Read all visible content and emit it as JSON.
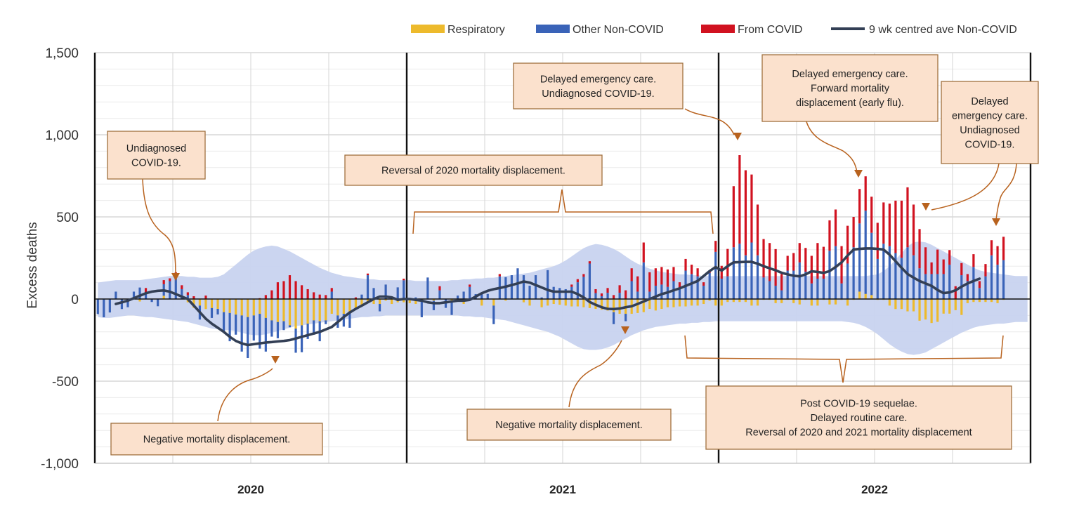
{
  "chart_data": {
    "type": "bar",
    "stacked": true,
    "ylabel": "Excess deaths",
    "ylim": [
      -1000,
      1500
    ],
    "yticks": [
      "1,500",
      "1,000",
      "500",
      "0",
      "-500",
      "-1,000"
    ],
    "ytick_values": [
      1500,
      1000,
      500,
      0,
      -500,
      -1000
    ],
    "grid": true,
    "legend_position": "top-right",
    "legend": [
      {
        "key": "respiratory",
        "label": "Respiratory",
        "kind": "bar",
        "color": "#EDBA2C"
      },
      {
        "key": "other",
        "label": "Other Non-COVID",
        "kind": "bar",
        "color": "#3A63B8"
      },
      {
        "key": "covid",
        "label": "From COVID",
        "kind": "bar",
        "color": "#D11220"
      },
      {
        "key": "ave",
        "label": "9 wk centred ave Non-COVID",
        "kind": "line",
        "color": "#333F55"
      }
    ],
    "band_color": "#C8D3EF",
    "x_unit": "week of year",
    "years": [
      {
        "label": "2020",
        "respiratory": [
          0,
          0,
          0,
          0,
          0,
          0,
          0,
          -15,
          0,
          0,
          0,
          20,
          0,
          0,
          0,
          -20,
          -54,
          -40,
          -61,
          -55,
          -60,
          -80,
          -85,
          -95,
          -100,
          -110,
          -100,
          -90,
          -115,
          -130,
          -140,
          -135,
          -160,
          -180,
          -160,
          -150,
          -130,
          -135,
          -130,
          -90,
          -100,
          -90,
          -85,
          -60,
          -40,
          -25,
          -30,
          -30,
          -10,
          -30,
          -20,
          -20
        ],
        "other": [
          -92,
          -111,
          -82,
          45,
          -61,
          -50,
          45,
          70,
          40,
          -18,
          -44,
          70,
          109,
          138,
          60,
          24,
          0,
          -85,
          0,
          -60,
          -34,
          -116,
          -172,
          -122,
          -220,
          -249,
          -153,
          -212,
          -205,
          -99,
          -99,
          -54,
          -12,
          -147,
          -164,
          -93,
          -87,
          -122,
          -23,
          45,
          -75,
          -78,
          -90,
          0,
          27,
          145,
          67,
          -45,
          88,
          0,
          71,
          114
        ],
        "covid": [
          0,
          0,
          0,
          0,
          0,
          0,
          0,
          0,
          27,
          0,
          0,
          25,
          17,
          25,
          24,
          17,
          17,
          0,
          21,
          0,
          0,
          0,
          0,
          0,
          0,
          0,
          0,
          5,
          24,
          53,
          102,
          109,
          145,
          109,
          84,
          60,
          41,
          27,
          24,
          22,
          0,
          0,
          0,
          10,
          0,
          10,
          0,
          0,
          0,
          0,
          0,
          10
        ],
        "ave": [
          null,
          null,
          null,
          -30,
          -20,
          -10,
          5,
          20,
          35,
          45,
          50,
          52,
          45,
          30,
          15,
          0,
          -40,
          -80,
          -120,
          -150,
          -175,
          -200,
          -230,
          -255,
          -270,
          -280,
          -275,
          -270,
          -265,
          -262,
          -258,
          -255,
          -250,
          -240,
          -230,
          -220,
          -210,
          -200,
          -185,
          -170,
          -140,
          -110,
          -82,
          -60,
          -40,
          -20,
          0,
          15,
          15,
          10,
          -5,
          0
        ],
        "band_upper": [
          100,
          105,
          110,
          115,
          115,
          115,
          115,
          115,
          120,
          125,
          130,
          135,
          140,
          140,
          140,
          135,
          135,
          130,
          130,
          130,
          135,
          150,
          180,
          210,
          240,
          270,
          295,
          310,
          320,
          325,
          320,
          305,
          290,
          270,
          250,
          230,
          210,
          190,
          175,
          160,
          150,
          140,
          135,
          130,
          125,
          120,
          120,
          115,
          115,
          115,
          115,
          115
        ],
        "band_lower": [
          -110,
          -115,
          -115,
          -110,
          -105,
          -100,
          -100,
          -105,
          -110,
          -110,
          -115,
          -120,
          -125,
          -130,
          -135,
          -140,
          -150,
          -160,
          -170,
          -180,
          -185,
          -190,
          -190,
          -195,
          -205,
          -215,
          -220,
          -220,
          -215,
          -205,
          -195,
          -185,
          -175,
          -165,
          -160,
          -155,
          -150,
          -145,
          -140,
          -135,
          -130,
          -125,
          -120,
          -115,
          -110,
          -110,
          -105,
          -105,
          -100,
          -100,
          -100,
          -100
        ]
      },
      {
        "label": "2021",
        "respiratory": [
          -25,
          -30,
          -15,
          0,
          -10,
          0,
          0,
          -20,
          0,
          -30,
          0,
          0,
          -40,
          0,
          -40,
          0,
          -10,
          0,
          0,
          -20,
          -40,
          0,
          -50,
          -40,
          -30,
          -35,
          -40,
          -45,
          -45,
          -50,
          -55,
          -60,
          -65,
          -70,
          -80,
          -90,
          -90,
          -90,
          -85,
          -80,
          -60,
          -70,
          -60,
          -50,
          -50,
          -45,
          -45,
          -40,
          -40,
          -30,
          -10,
          -40
        ],
        "other": [
          0,
          10,
          -96,
          131,
          -58,
          53,
          -54,
          -77,
          21,
          45,
          74,
          30,
          41,
          31,
          -113,
          138,
          133,
          145,
          187,
          145,
          81,
          145,
          10,
          176,
          74,
          67,
          60,
          74,
          102,
          135,
          216,
          36,
          17,
          38,
          -73,
          38,
          -45,
          109,
          45,
          223,
          45,
          81,
          88,
          74,
          109,
          60,
          173,
          152,
          138,
          81,
          159,
          287
        ],
        "covid": [
          0,
          0,
          0,
          0,
          0,
          25,
          0,
          0,
          0,
          0,
          14,
          0,
          0,
          0,
          0,
          14,
          0,
          0,
          0,
          0,
          0,
          0,
          0,
          0,
          0,
          0,
          0,
          14,
          19,
          17,
          14,
          24,
          17,
          29,
          24,
          46,
          53,
          78,
          93,
          121,
          118,
          106,
          107,
          106,
          86,
          42,
          71,
          57,
          49,
          21,
          14,
          67
        ],
        "ave": [
          0,
          -5,
          -10,
          -20,
          -25,
          -25,
          -20,
          -15,
          -10,
          -10,
          -5,
          15,
          35,
          50,
          60,
          67,
          75,
          85,
          95,
          107,
          100,
          85,
          70,
          55,
          45,
          45,
          45,
          45,
          30,
          10,
          -18,
          -35,
          -50,
          -60,
          -61,
          -58,
          -50,
          -44,
          -30,
          -15,
          0,
          15,
          30,
          40,
          53,
          65,
          80,
          95,
          110,
          140,
          170,
          195
        ],
        "band_upper": [
          115,
          110,
          110,
          110,
          110,
          110,
          110,
          115,
          115,
          120,
          120,
          125,
          125,
          130,
          130,
          135,
          140,
          145,
          150,
          155,
          160,
          170,
          180,
          190,
          200,
          215,
          235,
          260,
          285,
          310,
          325,
          335,
          330,
          320,
          305,
          285,
          260,
          235,
          215,
          200,
          185,
          175,
          165,
          160,
          155,
          150,
          150,
          145,
          145,
          140,
          140,
          140
        ],
        "band_lower": [
          -100,
          -100,
          -100,
          -100,
          -100,
          -100,
          -100,
          -100,
          -100,
          -105,
          -105,
          -110,
          -110,
          -115,
          -120,
          -125,
          -130,
          -140,
          -150,
          -160,
          -170,
          -180,
          -190,
          -200,
          -215,
          -230,
          -250,
          -270,
          -290,
          -305,
          -310,
          -310,
          -305,
          -295,
          -280,
          -260,
          -240,
          -220,
          -205,
          -190,
          -180,
          -170,
          -165,
          -160,
          -155,
          -150,
          -150,
          -145,
          -145,
          -140,
          -140,
          -135
        ]
      },
      {
        "label": "2022",
        "respiratory": [
          -40,
          -18,
          -18,
          -18,
          -18,
          -40,
          -40,
          -5,
          -5,
          -25,
          -25,
          -5,
          -25,
          -33,
          -5,
          -40,
          -40,
          -5,
          -33,
          -33,
          -5,
          -40,
          -5,
          45,
          31,
          24,
          -5,
          -5,
          -40,
          -61,
          -61,
          -75,
          -75,
          -132,
          -125,
          -146,
          -139,
          -89,
          -89,
          -68,
          -97,
          -25,
          -18,
          -18,
          -18,
          -18,
          -25,
          -5
        ],
        "other": [
          124,
          138,
          315,
          337,
          266,
          344,
          266,
          131,
          109,
          81,
          53,
          173,
          173,
          223,
          166,
          95,
          124,
          124,
          294,
          322,
          95,
          216,
          315,
          415,
          507,
          379,
          244,
          337,
          322,
          280,
          251,
          315,
          266,
          187,
          152,
          152,
          152,
          152,
          209,
          0,
          145,
          109,
          195,
          67,
          138,
          266,
          209,
          237
        ],
        "covid": [
          78,
          167,
          372,
          539,
          518,
          414,
          309,
          234,
          232,
          223,
          99,
          90,
          107,
          118,
          145,
          168,
          217,
          194,
          185,
          223,
          227,
          230,
          185,
          210,
          209,
          220,
          220,
          251,
          259,
          319,
          348,
          365,
          309,
          239,
          163,
          71,
          149,
          89,
          89,
          78,
          74,
          43,
          78,
          42,
          75,
          92,
          113,
          142
        ],
        "ave": [
          173,
          200,
          223,
          225,
          226,
          226,
          215,
          200,
          187,
          175,
          160,
          150,
          142,
          138,
          150,
          169,
          165,
          159,
          170,
          195,
          223,
          265,
          301,
          305,
          308,
          308,
          305,
          301,
          270,
          230,
          190,
          152,
          130,
          110,
          95,
          80,
          55,
          36,
          40,
          53,
          75,
          95,
          110,
          124,
          null,
          null,
          null,
          null
        ],
        "band_upper": [
          140,
          140,
          140,
          140,
          140,
          140,
          140,
          140,
          140,
          140,
          140,
          140,
          140,
          140,
          140,
          140,
          140,
          140,
          140,
          140,
          140,
          140,
          140,
          140,
          140,
          145,
          150,
          170,
          200,
          240,
          280,
          320,
          345,
          350,
          345,
          330,
          310,
          290,
          270,
          250,
          230,
          210,
          190,
          175,
          165,
          160,
          155,
          150,
          145,
          140,
          140,
          140
        ],
        "band_lower": [
          -135,
          -135,
          -135,
          -135,
          -135,
          -135,
          -135,
          -135,
          -135,
          -135,
          -135,
          -135,
          -135,
          -135,
          -135,
          -135,
          -135,
          -135,
          -135,
          -135,
          -135,
          -140,
          -145,
          -155,
          -170,
          -190,
          -215,
          -245,
          -275,
          -300,
          -320,
          -335,
          -340,
          -335,
          -325,
          -305,
          -285,
          -265,
          -245,
          -225,
          -205,
          -190,
          -175,
          -165,
          -160,
          -155,
          -150,
          -150,
          -145,
          -140,
          -140,
          -140
        ]
      }
    ],
    "annotations": [
      {
        "id": "undiagnosed-2020",
        "lines": [
          "Undiagnosed",
          "COVID-19."
        ]
      },
      {
        "id": "reversal-2020",
        "lines": [
          "Reversal of 2020 mortality displacement."
        ]
      },
      {
        "id": "delayed-2021",
        "lines": [
          "Delayed emergency  care.",
          "Undiagnosed COVID-19."
        ]
      },
      {
        "id": "delayed-flu-2022",
        "lines": [
          "Delayed emergency care.",
          "Forward mortality",
          "displacement (early flu)."
        ]
      },
      {
        "id": "delayed-late-2022",
        "lines": [
          "Delayed",
          "emergency  care.",
          "Undiagnosed",
          "COVID-19."
        ]
      },
      {
        "id": "negative-2020",
        "lines": [
          "Negative mortality displacement."
        ]
      },
      {
        "id": "negative-2021",
        "lines": [
          "Negative mortality displacement."
        ]
      },
      {
        "id": "post-covid",
        "lines": [
          "Post COVID-19 sequelae.",
          "Delayed routine care.",
          "Reversal of 2020 and 2021 mortality displacement"
        ]
      }
    ],
    "annotation_style": {
      "fill": "#FBE1CD",
      "border": "#A0703F",
      "arrow": "#B8621E"
    }
  }
}
